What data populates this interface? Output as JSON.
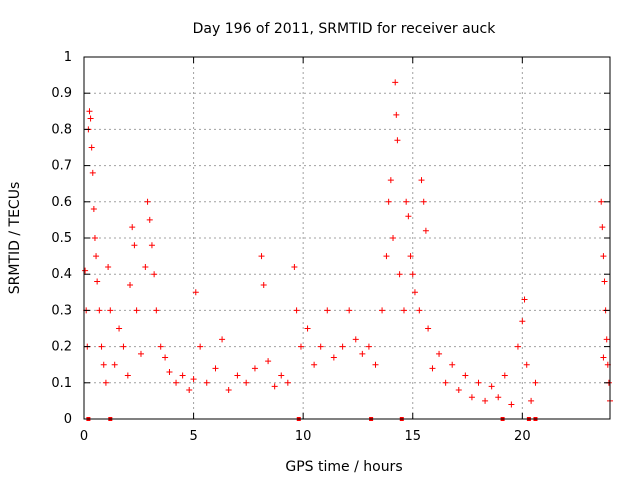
{
  "chart_data": {
    "type": "scatter",
    "title": "Day 196 of 2011, SRMTID for receiver auck",
    "xlabel": "GPS time / hours",
    "ylabel": "SRMTID / TECUs",
    "xlim": [
      0,
      24
    ],
    "ylim": [
      0,
      1
    ],
    "x_ticks": [
      0,
      5,
      10,
      15,
      20
    ],
    "x_tick_labels": [
      "0",
      "5",
      "10",
      "15",
      "20"
    ],
    "y_ticks": [
      0,
      0.1,
      0.2,
      0.3,
      0.4,
      0.5,
      0.6,
      0.7,
      0.8,
      0.9,
      1
    ],
    "y_tick_labels": [
      "0",
      "0.1",
      "0.2",
      "0.3",
      "0.4",
      "0.5",
      "0.6",
      "0.7",
      "0.8",
      "0.9",
      "1"
    ],
    "grid": true,
    "marker": "+",
    "series": [
      {
        "name": "SRMTID",
        "color": "#ff0000",
        "points": [
          [
            0.05,
            0.41
          ],
          [
            0.1,
            0.3
          ],
          [
            0.15,
            0.2
          ],
          [
            0.2,
            0.8
          ],
          [
            0.25,
            0.85
          ],
          [
            0.3,
            0.83
          ],
          [
            0.35,
            0.75
          ],
          [
            0.4,
            0.68
          ],
          [
            0.45,
            0.58
          ],
          [
            0.5,
            0.5
          ],
          [
            0.55,
            0.45
          ],
          [
            0.6,
            0.38
          ],
          [
            0.7,
            0.3
          ],
          [
            0.8,
            0.2
          ],
          [
            0.9,
            0.15
          ],
          [
            1.0,
            0.1
          ],
          [
            1.1,
            0.42
          ],
          [
            1.2,
            0.3
          ],
          [
            1.4,
            0.15
          ],
          [
            1.6,
            0.25
          ],
          [
            1.8,
            0.2
          ],
          [
            2.0,
            0.12
          ],
          [
            2.1,
            0.37
          ],
          [
            2.2,
            0.53
          ],
          [
            2.3,
            0.48
          ],
          [
            2.4,
            0.3
          ],
          [
            2.6,
            0.18
          ],
          [
            2.8,
            0.42
          ],
          [
            2.9,
            0.6
          ],
          [
            3.0,
            0.55
          ],
          [
            3.1,
            0.48
          ],
          [
            3.2,
            0.4
          ],
          [
            3.3,
            0.3
          ],
          [
            3.5,
            0.2
          ],
          [
            3.7,
            0.17
          ],
          [
            3.9,
            0.13
          ],
          [
            4.2,
            0.1
          ],
          [
            4.5,
            0.12
          ],
          [
            4.8,
            0.08
          ],
          [
            5.0,
            0.11
          ],
          [
            5.1,
            0.35
          ],
          [
            5.3,
            0.2
          ],
          [
            5.6,
            0.1
          ],
          [
            6.0,
            0.14
          ],
          [
            6.3,
            0.22
          ],
          [
            6.6,
            0.08
          ],
          [
            7.0,
            0.12
          ],
          [
            7.4,
            0.1
          ],
          [
            7.8,
            0.14
          ],
          [
            8.1,
            0.45
          ],
          [
            8.2,
            0.37
          ],
          [
            8.4,
            0.16
          ],
          [
            8.7,
            0.09
          ],
          [
            9.0,
            0.12
          ],
          [
            9.3,
            0.1
          ],
          [
            9.6,
            0.42
          ],
          [
            9.7,
            0.3
          ],
          [
            9.9,
            0.2
          ],
          [
            10.2,
            0.25
          ],
          [
            10.5,
            0.15
          ],
          [
            10.8,
            0.2
          ],
          [
            11.1,
            0.3
          ],
          [
            11.4,
            0.17
          ],
          [
            11.8,
            0.2
          ],
          [
            12.1,
            0.3
          ],
          [
            12.4,
            0.22
          ],
          [
            12.7,
            0.18
          ],
          [
            13.0,
            0.2
          ],
          [
            13.3,
            0.15
          ],
          [
            13.6,
            0.3
          ],
          [
            13.8,
            0.45
          ],
          [
            13.9,
            0.6
          ],
          [
            14.0,
            0.66
          ],
          [
            14.1,
            0.5
          ],
          [
            14.2,
            0.93
          ],
          [
            14.25,
            0.84
          ],
          [
            14.3,
            0.77
          ],
          [
            14.4,
            0.4
          ],
          [
            14.6,
            0.3
          ],
          [
            14.7,
            0.6
          ],
          [
            14.8,
            0.56
          ],
          [
            14.9,
            0.45
          ],
          [
            15.0,
            0.4
          ],
          [
            15.1,
            0.35
          ],
          [
            15.3,
            0.3
          ],
          [
            15.4,
            0.66
          ],
          [
            15.5,
            0.6
          ],
          [
            15.6,
            0.52
          ],
          [
            15.7,
            0.25
          ],
          [
            15.9,
            0.14
          ],
          [
            16.2,
            0.18
          ],
          [
            16.5,
            0.1
          ],
          [
            16.8,
            0.15
          ],
          [
            17.1,
            0.08
          ],
          [
            17.4,
            0.12
          ],
          [
            17.7,
            0.06
          ],
          [
            18.0,
            0.1
          ],
          [
            18.3,
            0.05
          ],
          [
            18.6,
            0.09
          ],
          [
            18.9,
            0.06
          ],
          [
            19.2,
            0.12
          ],
          [
            19.5,
            0.04
          ],
          [
            19.8,
            0.2
          ],
          [
            20.0,
            0.27
          ],
          [
            20.1,
            0.33
          ],
          [
            20.2,
            0.15
          ],
          [
            20.4,
            0.05
          ],
          [
            20.6,
            0.1
          ],
          [
            23.6,
            0.6
          ],
          [
            23.65,
            0.53
          ],
          [
            23.7,
            0.45
          ],
          [
            23.75,
            0.38
          ],
          [
            23.8,
            0.3
          ],
          [
            23.85,
            0.22
          ],
          [
            23.9,
            0.15
          ],
          [
            23.95,
            0.1
          ],
          [
            24.0,
            0.05
          ],
          [
            23.7,
            0.17
          ]
        ]
      }
    ],
    "zero_markers_x": [
      0.2,
      1.2,
      9.8,
      13.1,
      14.5,
      19.1,
      20.3,
      20.6
    ]
  }
}
